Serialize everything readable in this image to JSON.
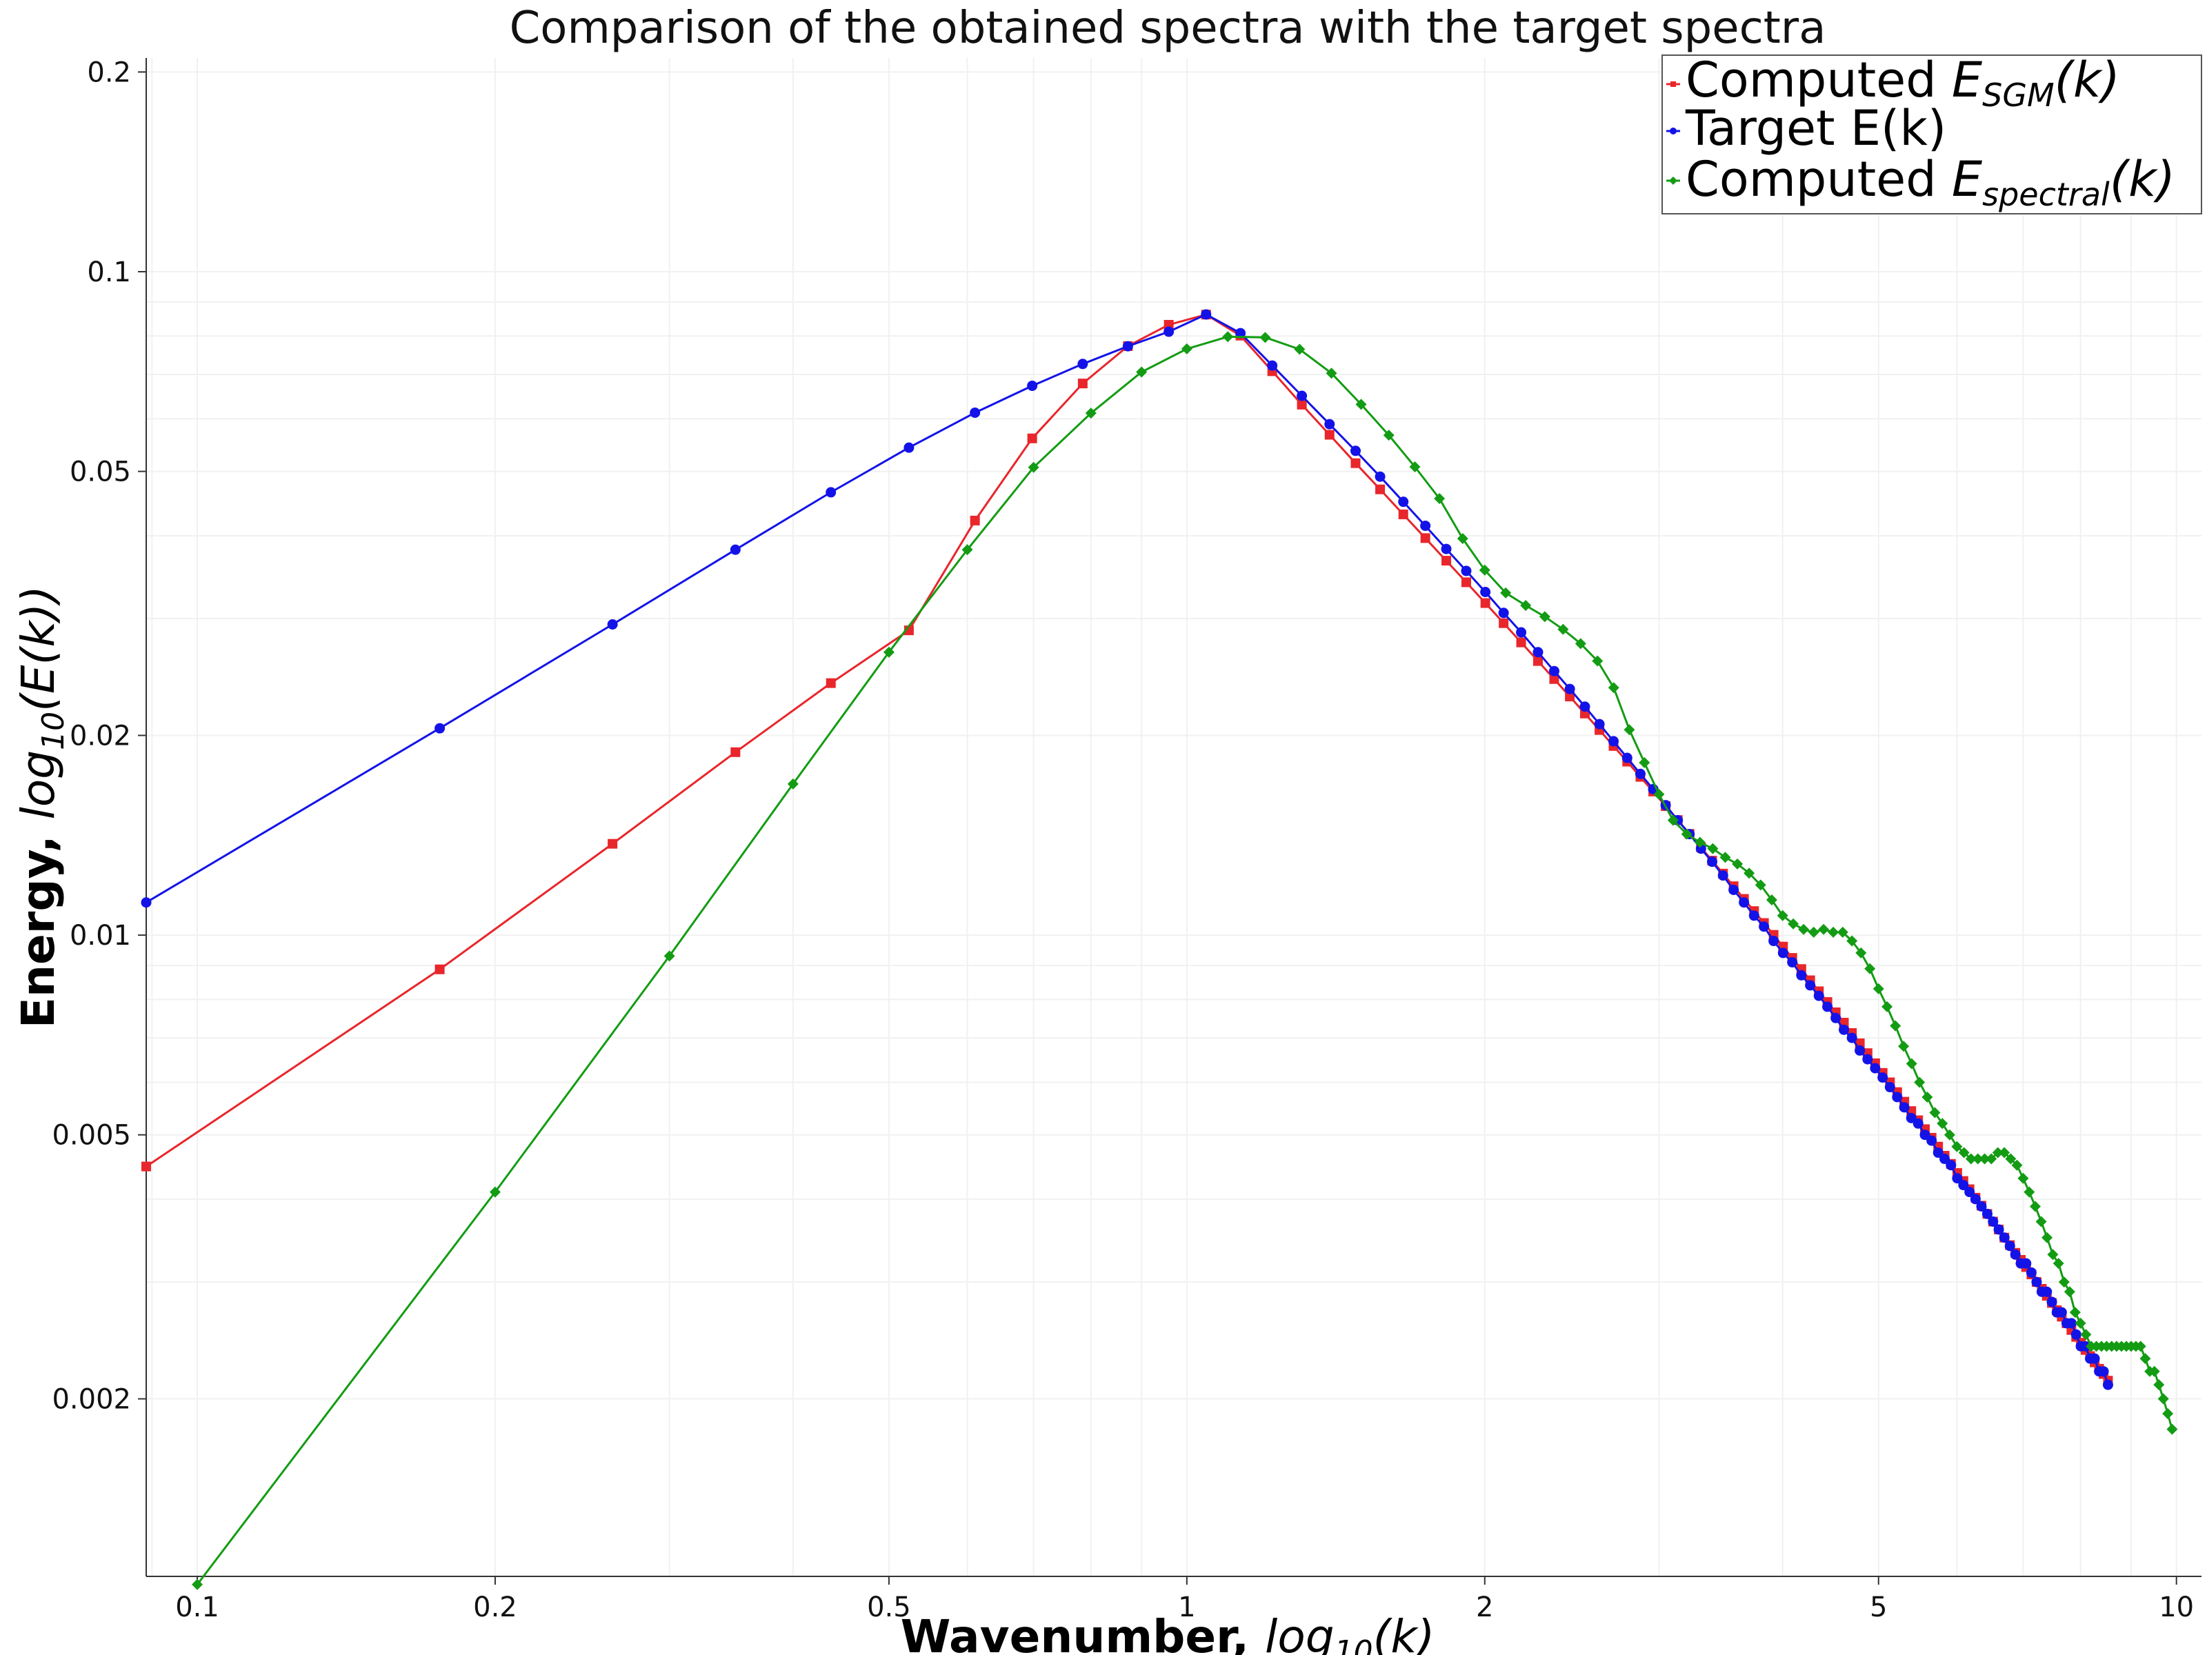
{
  "chart_data": {
    "type": "line",
    "title": "Comparison of the obtained spectra with the target spectra",
    "xlabel": {
      "bold": "Wavenumber, ",
      "math": "log",
      "sub": "10",
      "tail": "(k)"
    },
    "ylabel": {
      "bold": "Energy, ",
      "math": "log",
      "sub": "10",
      "tail": "(E(k))"
    },
    "xscale": "log",
    "yscale": "log",
    "xlim": [
      0.0888,
      10.6
    ],
    "ylim": [
      0.00108,
      0.21
    ],
    "grid": true,
    "legend_position": "top-right",
    "x_ticks": [
      {
        "value": 0.1,
        "label": "0.1"
      },
      {
        "value": 0.2,
        "label": "0.2"
      },
      {
        "value": 0.5,
        "label": "0.5"
      },
      {
        "value": 1,
        "label": "1"
      },
      {
        "value": 2,
        "label": "2"
      },
      {
        "value": 5,
        "label": "5"
      },
      {
        "value": 10,
        "label": "10"
      }
    ],
    "y_ticks": [
      {
        "value": 0.002,
        "label": "0.002"
      },
      {
        "value": 0.005,
        "label": "0.005"
      },
      {
        "value": 0.01,
        "label": "0.01"
      },
      {
        "value": 0.02,
        "label": "0.02"
      },
      {
        "value": 0.05,
        "label": "0.05"
      },
      {
        "value": 0.1,
        "label": "0.1"
      },
      {
        "value": 0.2,
        "label": "0.2"
      }
    ],
    "series": [
      {
        "name": "Computed E_SGM(k)",
        "legend": {
          "pre": "Computed ",
          "math": "E",
          "sub": "SGM",
          "tail": "(k)"
        },
        "color": "#e8262b",
        "marker": "square",
        "x": [
          0.0888,
          0.1758,
          0.2628,
          0.3498,
          0.4368,
          0.5238,
          0.6108,
          0.6978,
          0.7848,
          0.8718,
          0.9588,
          1.0458,
          1.1328,
          1.2198,
          1.3068,
          1.3938,
          1.4808,
          1.5678,
          1.6548,
          1.7418,
          1.8288,
          1.9158,
          2.0028,
          2.0898,
          2.1768,
          2.2638,
          2.3508,
          2.4378,
          2.5248,
          2.6118,
          2.6988,
          2.7858,
          2.8728,
          2.9598,
          3.0468,
          3.1338,
          3.2208,
          3.3078,
          3.3948,
          3.4818,
          3.5688,
          3.6558,
          3.7428,
          3.8298,
          3.9168,
          4.0038,
          4.0908,
          4.1778,
          4.2648,
          4.3518,
          4.4388,
          4.5258,
          4.6128,
          4.6998,
          4.7868,
          4.8738,
          4.9608,
          5.0478,
          5.1348,
          5.2218,
          5.3088,
          5.3958,
          5.4828,
          5.5698,
          5.6568,
          5.7438,
          5.8308,
          5.9178,
          6.0048,
          6.0918,
          6.1788,
          6.2658,
          6.3528,
          6.4398,
          6.5268,
          6.6138,
          6.7008,
          6.7878,
          6.8748,
          6.9618,
          7.0488,
          7.1358,
          7.2228,
          7.3098,
          7.3968,
          7.4838,
          7.5708,
          7.6578,
          7.7448,
          7.8318,
          7.9188,
          8.0058,
          8.0928,
          8.1798,
          8.2668,
          8.3538,
          8.4408,
          8.5278
        ],
        "y": [
          0.00448,
          0.00888,
          0.01373,
          0.01887,
          0.02398,
          0.0288,
          0.04216,
          0.05607,
          0.06784,
          0.07724,
          0.08318,
          0.08617,
          0.0801,
          0.07079,
          0.06304,
          0.05678,
          0.05145,
          0.04698,
          0.04307,
          0.03967,
          0.03668,
          0.03403,
          0.03166,
          0.02953,
          0.02762,
          0.02589,
          0.02432,
          0.02289,
          0.02158,
          0.02038,
          0.01928,
          0.01826,
          0.01732,
          0.01646,
          0.01565,
          0.01491,
          0.01421,
          0.01356,
          0.01295,
          0.01238,
          0.01185,
          0.01134,
          0.01087,
          0.01043,
          0.01001,
          0.00961,
          0.00924,
          0.00889,
          0.00855,
          0.00823,
          0.00793,
          0.00765,
          0.00738,
          0.00712,
          0.00687,
          0.00664,
          0.00641,
          0.0062,
          0.006,
          0.0058,
          0.00561,
          0.00543,
          0.00526,
          0.0051,
          0.00495,
          0.0048,
          0.00465,
          0.00452,
          0.00438,
          0.00426,
          0.00414,
          0.00402,
          0.00391,
          0.0038,
          0.0037,
          0.0036,
          0.0035,
          0.00341,
          0.00332,
          0.00324,
          0.00316,
          0.00308,
          0.003,
          0.00293,
          0.00286,
          0.00279,
          0.00272,
          0.00266,
          0.0026,
          0.00254,
          0.00248,
          0.00243,
          0.00237,
          0.00232,
          0.00227,
          0.00222,
          0.00218,
          0.00213
        ]
      },
      {
        "name": "Target E(k)",
        "legend": {
          "pre": "Target E(k)",
          "math": "",
          "sub": "",
          "tail": ""
        },
        "color": "#1313e8",
        "marker": "circle",
        "x": [
          0.0888,
          0.1758,
          0.2628,
          0.3498,
          0.4368,
          0.5238,
          0.6108,
          0.6978,
          0.7848,
          0.8718,
          0.9588,
          1.0458,
          1.1328,
          1.2198,
          1.3068,
          1.3938,
          1.4808,
          1.5678,
          1.6548,
          1.7418,
          1.8288,
          1.9158,
          2.0028,
          2.0898,
          2.1768,
          2.2638,
          2.3508,
          2.4378,
          2.5248,
          2.6118,
          2.6988,
          2.7858,
          2.8728,
          2.9598,
          3.0468,
          3.1338,
          3.2208,
          3.3078,
          3.3948,
          3.4818,
          3.5688,
          3.6558,
          3.7428,
          3.8298,
          3.9168,
          4.0038,
          4.0908,
          4.1778,
          4.2648,
          4.3518,
          4.4388,
          4.5258,
          4.6128,
          4.6998,
          4.7868,
          4.8738,
          4.9608,
          5.0478,
          5.1348,
          5.2218,
          5.3088,
          5.3958,
          5.4828,
          5.5698,
          5.6568,
          5.7438,
          5.8308,
          5.9178,
          6.0048,
          6.0918,
          6.1788,
          6.2658,
          6.3528,
          6.4398,
          6.5268,
          6.6138,
          6.7008,
          6.7878,
          6.8748,
          6.9618,
          7.0488,
          7.1358,
          7.2228,
          7.3098,
          7.3968,
          7.4838,
          7.5708,
          7.6578,
          7.7448,
          7.8318,
          7.9188,
          8.0058,
          8.0928,
          8.1798,
          8.2668,
          8.3538,
          8.4408,
          8.5278
        ],
        "y": [
          0.0112,
          0.0205,
          0.0294,
          0.0381,
          0.0465,
          0.0543,
          0.0613,
          0.0673,
          0.0726,
          0.0772,
          0.0812,
          0.0862,
          0.0808,
          0.0722,
          0.065,
          0.0589,
          0.0537,
          0.0491,
          0.045,
          0.0414,
          0.0382,
          0.0354,
          0.0329,
          0.0306,
          0.0286,
          0.0267,
          0.025,
          0.0235,
          0.0221,
          0.0208,
          0.0196,
          0.0185,
          0.0175,
          0.0166,
          0.0157,
          0.0149,
          0.0142,
          0.0135,
          0.0129,
          0.0123,
          0.0117,
          0.0112,
          0.0107,
          0.0103,
          0.0098,
          0.0094,
          0.0091,
          0.0087,
          0.0084,
          0.0081,
          0.0078,
          0.0075,
          0.0072,
          0.007,
          0.0067,
          0.0065,
          0.0063,
          0.0061,
          0.0059,
          0.0057,
          0.0055,
          0.0053,
          0.0052,
          0.005,
          0.0049,
          0.0047,
          0.0046,
          0.0045,
          0.0043,
          0.0042,
          0.0041,
          0.004,
          0.0039,
          0.0038,
          0.0037,
          0.0036,
          0.0035,
          0.0034,
          0.0033,
          0.0032,
          0.0032,
          0.0031,
          0.003,
          0.0029,
          0.0029,
          0.0028,
          0.0027,
          0.0027,
          0.0026,
          0.0026,
          0.0025,
          0.0024,
          0.0024,
          0.0023,
          0.0023,
          0.0022,
          0.0022,
          0.0021
        ]
      },
      {
        "name": "Computed E_spectral(k)",
        "legend": {
          "pre": "Computed ",
          "math": "E",
          "sub": "spectral",
          "tail": "(k)"
        },
        "color": "#139c13",
        "marker": "diamond",
        "x": [
          0.1,
          0.2,
          0.3,
          0.4,
          0.5,
          0.6,
          0.7,
          0.8,
          0.9,
          1.0,
          1.1,
          1.2,
          1.3,
          1.4,
          1.5,
          1.6,
          1.7,
          1.8,
          1.9,
          2.0,
          2.1,
          2.2,
          2.3,
          2.4,
          2.5,
          2.6,
          2.7,
          2.8,
          2.9,
          3.0,
          3.1,
          3.2,
          3.3,
          3.4,
          3.5,
          3.6,
          3.7,
          3.8,
          3.9,
          4.0,
          4.1,
          4.2,
          4.3,
          4.4,
          4.5,
          4.6,
          4.7,
          4.8,
          4.9,
          5.0,
          5.1,
          5.2,
          5.3,
          5.4,
          5.5,
          5.6,
          5.7,
          5.8,
          5.9,
          6.0,
          6.1,
          6.2,
          6.3,
          6.4,
          6.5,
          6.6,
          6.7,
          6.8,
          6.9,
          7.0,
          7.1,
          7.2,
          7.3,
          7.4,
          7.5,
          7.6,
          7.7,
          7.8,
          7.9,
          8.0,
          8.1,
          8.2,
          8.3,
          8.4,
          8.5,
          8.6,
          8.7,
          8.8,
          8.9,
          9.0,
          9.1,
          9.2,
          9.3,
          9.4,
          9.5,
          9.6,
          9.7,
          9.8,
          9.9
        ],
        "y": [
          0.00105,
          0.0041,
          0.0093,
          0.0169,
          0.0267,
          0.0381,
          0.0507,
          0.0612,
          0.0706,
          0.0765,
          0.0798,
          0.0796,
          0.0764,
          0.0703,
          0.0631,
          0.0567,
          0.0508,
          0.0455,
          0.0396,
          0.0355,
          0.0328,
          0.0314,
          0.0302,
          0.0289,
          0.0275,
          0.0259,
          0.0236,
          0.0204,
          0.0182,
          0.0163,
          0.0149,
          0.0142,
          0.0138,
          0.0135,
          0.0131,
          0.0128,
          0.0124,
          0.0119,
          0.0113,
          0.0107,
          0.0104,
          0.0102,
          0.0101,
          0.0102,
          0.0101,
          0.0101,
          0.0098,
          0.0094,
          0.0089,
          0.0083,
          0.0078,
          0.0073,
          0.0068,
          0.0064,
          0.006,
          0.0057,
          0.0054,
          0.0052,
          0.005,
          0.0048,
          0.0047,
          0.0046,
          0.0046,
          0.0046,
          0.0046,
          0.0047,
          0.0047,
          0.0046,
          0.0045,
          0.0043,
          0.0041,
          0.0039,
          0.0037,
          0.0035,
          0.0033,
          0.0032,
          0.003,
          0.0029,
          0.0027,
          0.0026,
          0.0025,
          0.0024,
          0.0024,
          0.0024,
          0.0024,
          0.0024,
          0.0024,
          0.0024,
          0.0024,
          0.0024,
          0.0024,
          0.0024,
          0.0023,
          0.0022,
          0.0022,
          0.0021,
          0.002,
          0.0019,
          0.0018
        ]
      }
    ]
  }
}
